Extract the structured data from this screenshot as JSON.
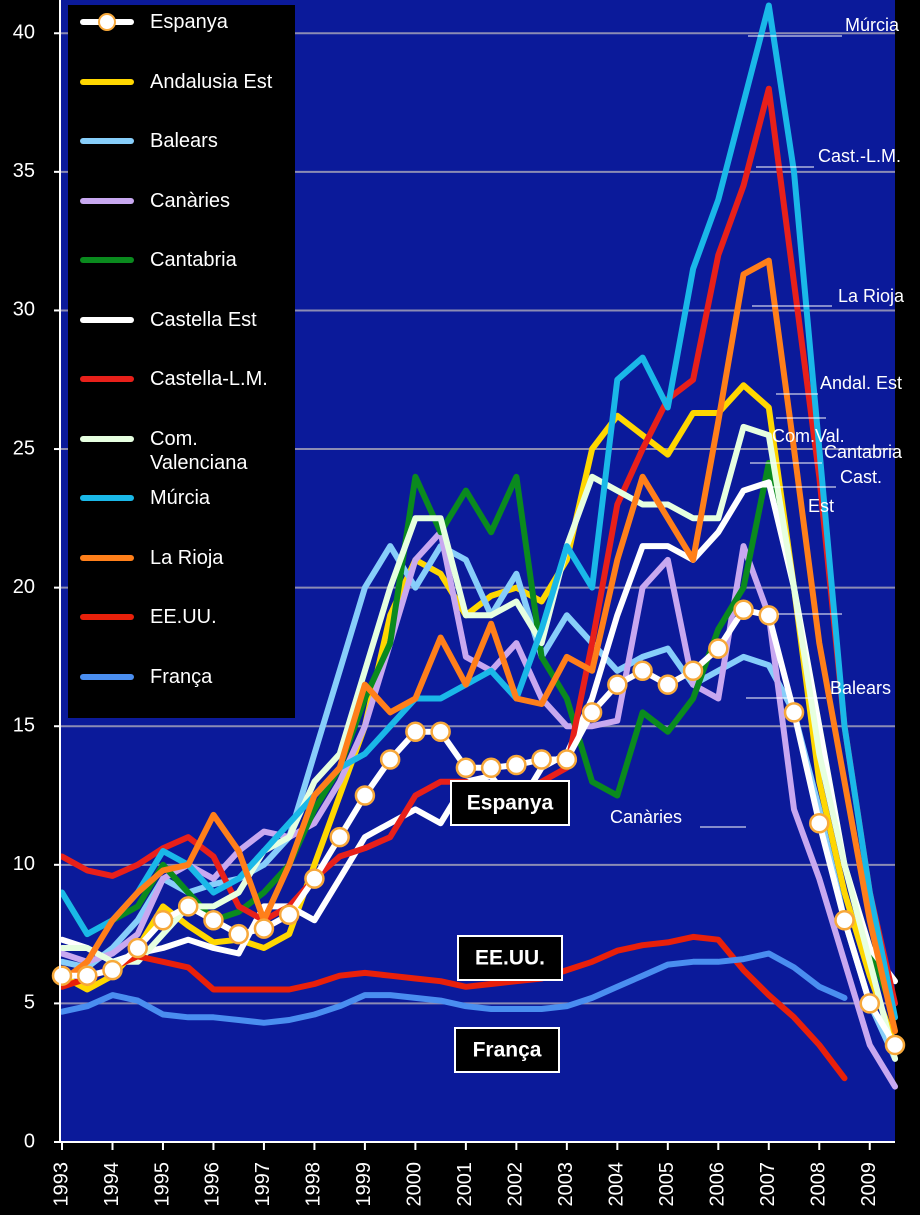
{
  "chart_data": {
    "type": "line",
    "x": [
      1993,
      1993.5,
      1994,
      1994.5,
      1995,
      1995.5,
      1996,
      1996.5,
      1997,
      1997.5,
      1998,
      1998.5,
      1999,
      1999.5,
      2000,
      2000.5,
      2001,
      2001.5,
      2002,
      2002.5,
      2003,
      2003.5,
      2004,
      2004.5,
      2005,
      2005.5,
      2006,
      2006.5,
      2007,
      2007.5,
      2008,
      2008.5,
      2009,
      2009.5
    ],
    "xlim": [
      1993,
      2009.5
    ],
    "xticks": [
      1993,
      1994,
      1995,
      1996,
      1997,
      1998,
      1999,
      2000,
      2001,
      2002,
      2003,
      2004,
      2005,
      2006,
      2007,
      2008,
      2009
    ],
    "ylim": [
      0,
      41.2
    ],
    "yticks": [
      0,
      5,
      10,
      15,
      20,
      25,
      30,
      35,
      40
    ],
    "grid": true,
    "series": [
      {
        "name": "Espanya",
        "color": "#ffffff",
        "marker": "circle",
        "marker_color": "#f7a83a",
        "values": [
          6,
          6,
          6.2,
          7,
          8,
          8.5,
          8,
          7.5,
          7.7,
          8.2,
          9.5,
          11,
          12.5,
          13.8,
          14.8,
          14.8,
          13.5,
          13.5,
          13.6,
          13.8,
          13.8,
          15.5,
          16.5,
          17,
          16.5,
          17,
          17.8,
          19.2,
          19,
          15.5,
          11.5,
          8,
          5,
          3.5
        ]
      },
      {
        "name": "Andalusia Est",
        "color": "#ffd700",
        "values": [
          6,
          5.5,
          6,
          7,
          8.5,
          7.8,
          7.2,
          7.3,
          7,
          7.5,
          10,
          12.5,
          15,
          19,
          21,
          20.5,
          19,
          19.7,
          20,
          19.5,
          21,
          25,
          26.2,
          25.5,
          24.8,
          26.3,
          26.3,
          27.3,
          26.5,
          20,
          13,
          9,
          6,
          3.5
        ]
      },
      {
        "name": "Balears",
        "color": "#87cefa",
        "values": [
          6.5,
          6.3,
          7,
          8,
          9.5,
          9,
          9.3,
          9.5,
          10,
          11,
          14,
          17,
          20,
          21.5,
          20,
          21.5,
          21,
          19,
          20.5,
          17.5,
          19,
          18,
          17,
          17.5,
          17.8,
          16.5,
          17,
          17.5,
          17.2,
          15.5,
          12,
          8,
          5,
          3
        ]
      },
      {
        "name": "Canàries",
        "color": "#c8a8f0",
        "values": [
          6.8,
          6.5,
          6.8,
          7.5,
          9.5,
          10,
          9.5,
          10.5,
          11.2,
          11,
          11.5,
          13,
          15,
          18,
          21,
          22,
          17.5,
          17,
          18,
          16,
          15,
          15,
          15.2,
          20,
          21,
          16.5,
          16,
          21.5,
          19,
          12,
          9.5,
          6.5,
          3.5,
          2
        ]
      },
      {
        "name": "Cantabria",
        "color": "#0a8a1e",
        "values": [
          9,
          7.5,
          8,
          8.5,
          10,
          9,
          8,
          8.3,
          9,
          10,
          12,
          13.5,
          16,
          18,
          24,
          22,
          23.5,
          22,
          24,
          17.5,
          16,
          13,
          12.5,
          15.5,
          14.8,
          16,
          18.5,
          20,
          24.5,
          20,
          15,
          10,
          7,
          4.5
        ]
      },
      {
        "name": "Castella Est",
        "color": "#ffffff",
        "values": [
          7.3,
          7,
          6.5,
          6.8,
          7,
          7.3,
          7,
          6.8,
          8.5,
          8.5,
          8,
          9.5,
          11,
          11.5,
          12,
          11.5,
          13,
          13.2,
          12,
          13.5,
          14,
          16,
          19,
          21.5,
          21.5,
          21,
          22,
          23.5,
          23.8,
          20,
          15,
          10,
          7,
          5.8
        ]
      },
      {
        "name": "Castella-L.M.",
        "color": "#e8201a",
        "values": [
          10.3,
          9.8,
          9.6,
          10,
          10.6,
          11,
          10.3,
          8.5,
          8,
          8.5,
          9.5,
          10.3,
          10.6,
          11,
          12.5,
          13,
          13,
          12.5,
          12,
          13,
          13.5,
          18,
          23,
          25,
          26.8,
          27.5,
          32,
          34.5,
          38,
          31,
          24,
          15,
          9,
          5
        ]
      },
      {
        "name": "Com. Valenciana",
        "color": "#e6ffe0",
        "values": [
          7,
          7,
          6.5,
          6.5,
          7.5,
          8.5,
          8.5,
          9,
          10.5,
          11,
          13,
          14,
          17,
          20,
          22.5,
          22.5,
          19,
          19,
          19.5,
          18,
          21.5,
          24,
          23.5,
          23,
          23,
          22.5,
          22.5,
          25.8,
          25.5,
          20,
          14,
          10,
          6.5,
          3
        ]
      },
      {
        "name": "Múrcia",
        "color": "#1ab8e8",
        "values": [
          9,
          7.5,
          8,
          9,
          10.5,
          10,
          9,
          9.5,
          10.5,
          11.5,
          12.5,
          13.5,
          14,
          15,
          16,
          16,
          16.5,
          17,
          16,
          18.5,
          21.5,
          20,
          27.5,
          28.3,
          26.5,
          31.5,
          34,
          37.5,
          41,
          35,
          25,
          15,
          9,
          4.5
        ]
      },
      {
        "name": "La Rioja",
        "color": "#ff7f1a",
        "values": [
          5.8,
          6.5,
          8,
          9,
          9.8,
          10,
          11.8,
          10.5,
          8,
          10,
          12.5,
          13.5,
          16.5,
          15.5,
          16,
          18.2,
          16.5,
          18.7,
          16,
          15.8,
          17.5,
          17,
          21,
          24,
          22.5,
          21,
          26,
          31.3,
          31.8,
          25,
          18,
          13,
          8,
          4
        ]
      },
      {
        "name": "EE.UU.",
        "color": "#e8200a",
        "values": [
          5.6,
          5.9,
          6.3,
          6.7,
          6.5,
          6.3,
          5.5,
          5.5,
          5.5,
          5.5,
          5.7,
          6,
          6.1,
          6,
          5.9,
          5.8,
          5.6,
          5.7,
          5.8,
          5.9,
          6.2,
          6.5,
          6.9,
          7.1,
          7.2,
          7.4,
          7.3,
          6.2,
          5.3,
          4.5,
          3.5,
          2.3,
          null,
          null
        ]
      },
      {
        "name": "França",
        "color": "#4a8ef0",
        "values": [
          4.7,
          4.9,
          5.3,
          5.1,
          4.6,
          4.5,
          4.5,
          4.4,
          4.3,
          4.4,
          4.6,
          4.9,
          5.3,
          5.3,
          5.2,
          5.1,
          4.9,
          4.8,
          4.8,
          4.8,
          4.9,
          5.2,
          5.6,
          6,
          6.4,
          6.5,
          6.5,
          6.6,
          6.8,
          6.3,
          5.6,
          5.2,
          null,
          null
        ]
      }
    ],
    "boxed_labels": [
      "Espanya",
      "EE.UU.",
      "França"
    ],
    "annotations": [
      "Múrcia",
      "Cast.-L.M.",
      "La Rioja",
      "Andal. Est",
      "Com.Val.",
      "Cantabria",
      "Cast.",
      "Est",
      "Balears",
      "Canàries"
    ]
  }
}
